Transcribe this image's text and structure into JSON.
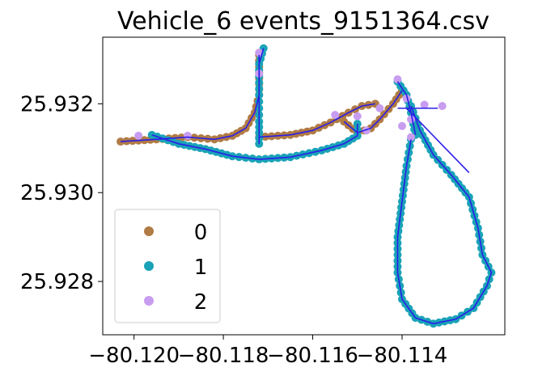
{
  "chart_data": {
    "type": "scatter",
    "title": "Vehicle_6 events_9151364.csv",
    "xlabel": "",
    "ylabel": "",
    "xlim": [
      -80.1207,
      -80.1117
    ],
    "ylim": [
      25.9268,
      25.9335
    ],
    "x_ticks": [
      -80.12,
      -80.118,
      -80.116,
      -80.114
    ],
    "x_tick_labels": [
      "−80.120",
      "−80.118",
      "−80.116",
      "−80.114"
    ],
    "y_ticks": [
      25.928,
      25.93,
      25.932
    ],
    "y_tick_labels": [
      "25.928",
      "25.930",
      "25.932"
    ],
    "grid": false,
    "legend": {
      "position": "lower-left",
      "entries": [
        "0",
        "1",
        "2"
      ]
    },
    "path_color": "#2a1de8",
    "series": [
      {
        "name": "0",
        "color": "#b07b44",
        "segments": [
          [
            [
              -80.1203,
              25.93115
            ],
            [
              -80.1195,
              25.9312
            ],
            [
              -80.1188,
              25.93125
            ],
            [
              -80.1182,
              25.9312
            ],
            [
              -80.1178,
              25.93128
            ],
            [
              -80.1175,
              25.93145
            ],
            [
              -80.1173,
              25.9318
            ],
            [
              -80.1172,
              25.9322
            ],
            [
              -80.1172,
              25.9327
            ],
            [
              -80.1172,
              25.9331
            ]
          ],
          [
            [
              -80.1172,
              25.93125
            ],
            [
              -80.1165,
              25.9313
            ],
            [
              -80.116,
              25.9314
            ],
            [
              -80.1156,
              25.93158
            ],
            [
              -80.1152,
              25.9318
            ],
            [
              -80.1149,
              25.93195
            ],
            [
              -80.1146,
              25.932
            ]
          ],
          [
            [
              -80.1153,
              25.9316
            ],
            [
              -80.115,
              25.93135
            ],
            [
              -80.1147,
              25.93145
            ],
            [
              -80.1145,
              25.93165
            ],
            [
              -80.1142,
              25.932
            ],
            [
              -80.114,
              25.9323
            ]
          ]
        ]
      },
      {
        "name": "1",
        "color": "#1aa3b8",
        "segments": [
          [
            [
              -80.1196,
              25.9313
            ],
            [
              -80.119,
              25.9311
            ],
            [
              -80.1184,
              25.93098
            ],
            [
              -80.1178,
              25.93082
            ],
            [
              -80.1172,
              25.93075
            ],
            [
              -80.1165,
              25.9308
            ],
            [
              -80.1158,
              25.93095
            ],
            [
              -80.1153,
              25.9311
            ],
            [
              -80.115,
              25.93128
            ],
            [
              -80.115,
              25.93155
            ]
          ],
          [
            [
              -80.1172,
              25.9311
            ],
            [
              -80.1172,
              25.9316
            ],
            [
              -80.1172,
              25.9322
            ],
            [
              -80.1172,
              25.9329
            ],
            [
              -80.1171,
              25.93325
            ]
          ],
          [
            [
              -80.1138,
              25.9312
            ],
            [
              -80.1139,
              25.9306
            ],
            [
              -80.114,
              25.9298
            ],
            [
              -80.1141,
              25.929
            ],
            [
              -80.1141,
              25.9282
            ],
            [
              -80.114,
              25.9276
            ],
            [
              -80.1137,
              25.92718
            ],
            [
              -80.1133,
              25.92705
            ],
            [
              -80.1128,
              25.92715
            ],
            [
              -80.1124,
              25.9274
            ],
            [
              -80.1121,
              25.9279
            ],
            [
              -80.112,
              25.9282
            ],
            [
              -80.1122,
              25.9286
            ],
            [
              -80.1123,
              25.9292
            ],
            [
              -80.1125,
              25.9299
            ],
            [
              -80.1129,
              25.9304
            ],
            [
              -80.1133,
              25.93085
            ],
            [
              -80.1136,
              25.9314
            ],
            [
              -80.1138,
              25.93195
            ]
          ],
          [
            [
              -80.1141,
              25.9325
            ],
            [
              -80.1139,
              25.9322
            ],
            [
              -80.1138,
              25.9318
            ],
            [
              -80.1137,
              25.9313
            ]
          ]
        ]
      },
      {
        "name": "2",
        "color": "#c89df0",
        "points": [
          [
            -80.1199,
            25.93128
          ],
          [
            -80.1188,
            25.93128
          ],
          [
            -80.1172,
            25.93315
          ],
          [
            -80.1172,
            25.93268
          ],
          [
            -80.1155,
            25.93175
          ],
          [
            -80.115,
            25.93172
          ],
          [
            -80.1148,
            25.9314
          ],
          [
            -80.1141,
            25.93255
          ],
          [
            -80.1139,
            25.93212
          ],
          [
            -80.1138,
            25.93165
          ],
          [
            -80.1138,
            25.93125
          ],
          [
            -80.1135,
            25.93198
          ],
          [
            -80.1131,
            25.93195
          ],
          [
            -80.114,
            25.9315
          ],
          [
            -80.1145,
            25.9319
          ]
        ]
      }
    ]
  }
}
